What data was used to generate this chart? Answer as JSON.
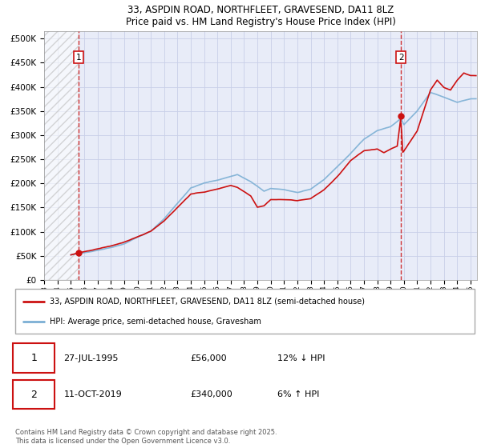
{
  "title": "33, ASPDIN ROAD, NORTHFLEET, GRAVESEND, DA11 8LZ",
  "subtitle": "Price paid vs. HM Land Registry's House Price Index (HPI)",
  "ylabel_ticks": [
    0,
    50000,
    100000,
    150000,
    200000,
    250000,
    300000,
    350000,
    400000,
    450000,
    500000
  ],
  "ylabel_labels": [
    "£0",
    "£50K",
    "£100K",
    "£150K",
    "£200K",
    "£250K",
    "£300K",
    "£350K",
    "£400K",
    "£450K",
    "£500K"
  ],
  "ylim": [
    0,
    515000
  ],
  "xlim_start": 1993.0,
  "xlim_end": 2025.5,
  "hpi_color": "#7bafd4",
  "price_color": "#cc1111",
  "grid_color": "#c8cfe8",
  "bg_color": "#e8ecf8",
  "marker1_x": 1995.57,
  "marker1_y": 56000,
  "marker2_x": 2019.78,
  "marker2_y": 340000,
  "annotation1_date": "27-JUL-1995",
  "annotation1_price": "£56,000",
  "annotation1_hpi": "12% ↓ HPI",
  "annotation2_date": "11-OCT-2019",
  "annotation2_price": "£340,000",
  "annotation2_hpi": "6% ↑ HPI",
  "legend_label1": "33, ASPDIN ROAD, NORTHFLEET, GRAVESEND, DA11 8LZ (semi-detached house)",
  "legend_label2": "HPI: Average price, semi-detached house, Gravesham",
  "footer": "Contains HM Land Registry data © Crown copyright and database right 2025.\nThis data is licensed under the Open Government Licence v3.0."
}
